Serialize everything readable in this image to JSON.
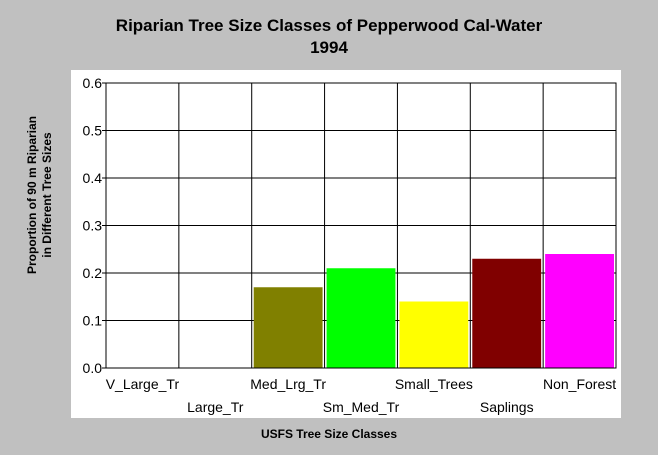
{
  "chart_data": {
    "type": "bar",
    "title_lines": [
      "Riparian Tree Size Classes of Pepperwood Cal-Water",
      "1994"
    ],
    "xlabel": "USFS Tree Size Classes",
    "ylabel_lines": [
      "Proportion of 90 m Riparian",
      "in Different Tree Sizes"
    ],
    "categories": [
      "V_Large_Tr",
      "Large_Tr",
      "Med_Lrg_Tr",
      "Sm_Med_Tr",
      "Small_Trees",
      "Saplings",
      "Non_Forest"
    ],
    "values": [
      0,
      0,
      0.17,
      0.21,
      0.14,
      0.23,
      0.24
    ],
    "colors": [
      "#000000",
      "#000000",
      "#808000",
      "#00ff00",
      "#ffff00",
      "#800000",
      "#ff00ff"
    ],
    "ylim": [
      0,
      0.6
    ],
    "yticks": [
      "0.0",
      "0.1",
      "0.2",
      "0.3",
      "0.4",
      "0.5",
      "0.6"
    ],
    "grid": true
  }
}
